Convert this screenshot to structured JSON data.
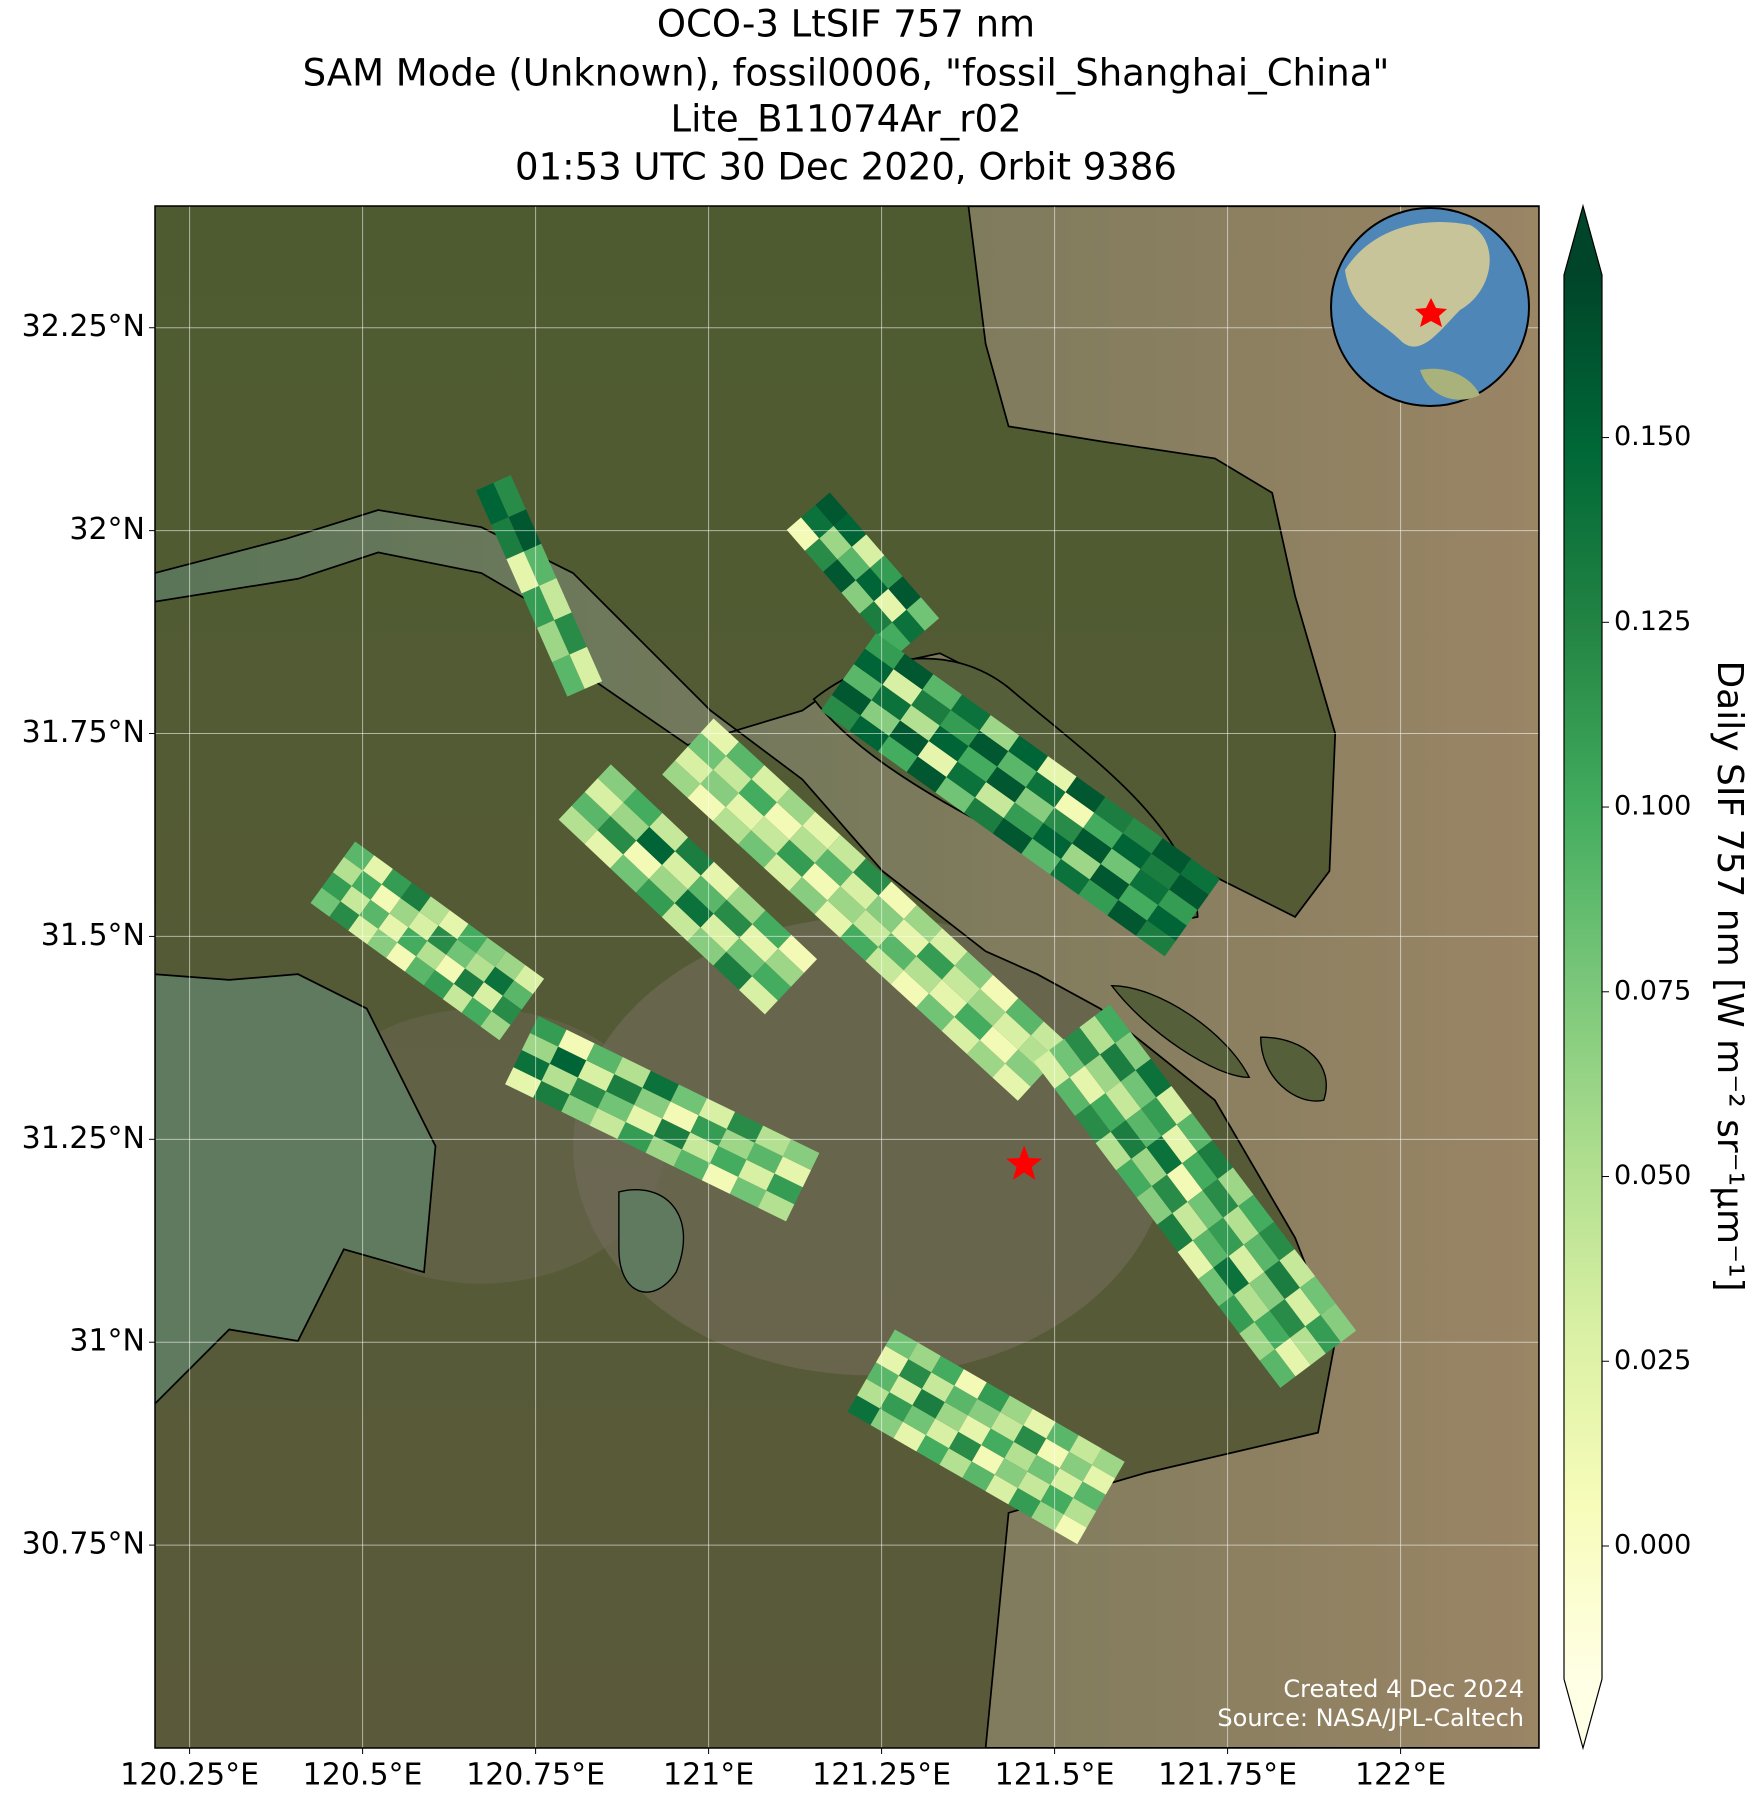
{
  "title": [
    "OCO-3 LtSIF 757 nm",
    "SAM Mode (Unknown), fossil0006, \"fossil_Shanghai_China\"",
    "Lite_B11074Ar_r02",
    "01:53 UTC 30 Dec 2020, Orbit 9386"
  ],
  "map": {
    "xlim": [
      120.2,
      122.2
    ],
    "ylim": [
      30.5,
      32.4
    ],
    "grid": true,
    "xticks": [
      {
        "value": 120.25,
        "label": "120.25°E"
      },
      {
        "value": 120.5,
        "label": "120.5°E"
      },
      {
        "value": 120.75,
        "label": "120.75°E"
      },
      {
        "value": 121,
        "label": "121°E"
      },
      {
        "value": 121.25,
        "label": "121.25°E"
      },
      {
        "value": 121.5,
        "label": "121.5°E"
      },
      {
        "value": 121.75,
        "label": "121.75°E"
      },
      {
        "value": 122,
        "label": "122°E"
      }
    ],
    "yticks": [
      {
        "value": 30.75,
        "label": "30.75°N"
      },
      {
        "value": 31,
        "label": "31°N"
      },
      {
        "value": 31.25,
        "label": "31.25°N"
      },
      {
        "value": 31.5,
        "label": "31.5°N"
      },
      {
        "value": 31.75,
        "label": "31.75°N"
      },
      {
        "value": 32,
        "label": "32°N"
      },
      {
        "value": 32.25,
        "label": "32.25°N"
      }
    ],
    "target": {
      "lon": 121.456,
      "lat": 31.219,
      "color": "#ff0000"
    },
    "swaths": [
      {
        "lon": [
          120.689,
          120.821
        ],
        "lat": [
          32.059,
          31.805
        ],
        "values": [
          [
            0.15,
            0.12
          ],
          [
            0.13,
            0.16
          ],
          [
            0.02,
            0.09
          ],
          [
            0.11,
            0.04
          ],
          [
            0.06,
            0.12
          ],
          [
            0.09,
            0.03
          ]
        ]
      },
      {
        "lon": [
          121.144,
          121.302
        ],
        "lat": [
          32.024,
          31.869
        ],
        "values": [
          [
            0.01,
            0.14,
            0.16
          ],
          [
            0.12,
            0.06,
            0.15
          ],
          [
            0.16,
            0.09,
            0.03
          ],
          [
            0.07,
            0.15,
            0.11
          ],
          [
            0.13,
            0.02,
            0.16
          ],
          [
            0.1,
            0.14,
            0.08
          ]
        ]
      },
      {
        "lon": [
          120.821,
          121.119
        ],
        "lat": [
          31.678,
          31.438
        ],
        "values": [
          [
            0.05,
            0.09,
            0.03,
            0.07
          ],
          [
            0.02,
            0.12,
            0.06,
            0.1
          ],
          [
            0.08,
            0.01,
            0.15,
            0.04
          ],
          [
            0.11,
            0.06,
            0.03,
            0.13
          ],
          [
            0.04,
            0.14,
            0.09,
            0.02
          ],
          [
            0.07,
            0.03,
            0.12,
            0.06
          ],
          [
            0.13,
            0.08,
            0.02,
            0.1
          ],
          [
            0.03,
            0.1,
            0.06,
            0.01
          ]
        ]
      },
      {
        "lon": [
          120.457,
          120.73
        ],
        "lat": [
          31.579,
          31.41
        ],
        "values": [
          [
            0.08,
            0.11,
            0.05,
            0.09
          ],
          [
            0.12,
            0.04,
            0.1,
            0.02
          ],
          [
            0.03,
            0.09,
            0.01,
            0.11
          ],
          [
            0.07,
            0.02,
            0.06,
            0.13
          ],
          [
            0.01,
            0.1,
            0.03,
            0.05
          ],
          [
            0.09,
            0.05,
            0.12,
            0.02
          ],
          [
            0.11,
            0.01,
            0.08,
            0.1
          ],
          [
            0.04,
            0.13,
            0.05,
            0.07
          ],
          [
            0.1,
            0.03,
            0.14,
            0.06
          ],
          [
            0.06,
            0.12,
            0.09,
            0.03
          ]
        ]
      },
      {
        "lon": [
          120.73,
          121.136
        ],
        "lat": [
          31.36,
          31.191
        ],
        "values": [
          [
            0.02,
            0.14,
            0.06,
            0.11
          ],
          [
            0.13,
            0.05,
            0.15,
            0.01
          ],
          [
            0.07,
            0.12,
            0.03,
            0.09
          ],
          [
            0.04,
            0.08,
            0.13,
            0.05
          ],
          [
            0.11,
            0.02,
            0.07,
            0.14
          ],
          [
            0.06,
            0.13,
            0.01,
            0.08
          ],
          [
            0.09,
            0.04,
            0.11,
            0.03
          ],
          [
            0.01,
            0.1,
            0.06,
            0.12
          ],
          [
            0.08,
            0.03,
            0.09,
            0.05
          ],
          [
            0.05,
            0.11,
            0.02,
            0.07
          ]
        ]
      },
      {
        "lon": [
          120.97,
          121.484
        ],
        "lat": [
          31.734,
          31.332
        ],
        "values": [
          [
            0.06,
            0.03,
            0.08,
            0.02
          ],
          [
            0.01,
            0.07,
            0.04,
            0.09
          ],
          [
            0.05,
            0.02,
            0.1,
            0.03
          ],
          [
            0.08,
            0.04,
            0.01,
            0.06
          ],
          [
            0.03,
            0.11,
            0.05,
            0.02
          ],
          [
            0.07,
            0.01,
            0.09,
            0.04
          ],
          [
            0.02,
            0.06,
            0.03,
            0.12
          ],
          [
            0.1,
            0.04,
            0.07,
            0.01
          ],
          [
            0.04,
            0.09,
            0.02,
            0.06
          ],
          [
            0.01,
            0.05,
            0.11,
            0.03
          ],
          [
            0.08,
            0.02,
            0.04,
            0.07
          ],
          [
            0.03,
            0.1,
            0.06,
            0.01
          ],
          [
            0.06,
            0.01,
            0.03,
            0.09
          ],
          [
            0.02,
            0.07,
            0.05,
            0.04
          ]
        ]
      },
      {
        "lon": [
          121.202,
          121.699
        ],
        "lat": [
          31.826,
          31.523
        ],
        "values": [
          [
            0.12,
            0.16,
            0.09,
            0.15,
            0.11
          ],
          [
            0.15,
            0.07,
            0.14,
            0.03,
            0.16
          ],
          [
            0.1,
            0.16,
            0.05,
            0.13,
            0.09
          ],
          [
            0.16,
            0.02,
            0.15,
            0.11,
            0.14
          ],
          [
            0.08,
            0.14,
            0.1,
            0.16,
            0.06
          ],
          [
            0.13,
            0.04,
            0.16,
            0.09,
            0.15
          ],
          [
            0.16,
            0.11,
            0.07,
            0.14,
            0.02
          ],
          [
            0.09,
            0.15,
            0.12,
            0.01,
            0.16
          ],
          [
            0.14,
            0.06,
            0.16,
            0.1,
            0.13
          ],
          [
            0.11,
            0.16,
            0.08,
            0.15,
            0.12
          ],
          [
            0.16,
            0.1,
            0.14,
            0.13,
            0.16
          ],
          [
            0.13,
            0.15,
            0.11,
            0.16,
            0.14
          ]
        ]
      },
      {
        "lon": [
          121.525,
          121.881
        ],
        "lat": [
          31.381,
          30.979
        ],
        "values": [
          [
            0.03,
            0.08,
            0.12,
            0.05,
            0.1
          ],
          [
            0.09,
            0.02,
            0.06,
            0.13,
            0.07
          ],
          [
            0.12,
            0.1,
            0.04,
            0.08,
            0.14
          ],
          [
            0.05,
            0.13,
            0.09,
            0.11,
            0.03
          ],
          [
            0.1,
            0.06,
            0.14,
            0.02,
            0.09
          ],
          [
            0.07,
            0.12,
            0.01,
            0.1,
            0.13
          ],
          [
            0.13,
            0.04,
            0.08,
            0.12,
            0.06
          ],
          [
            0.02,
            0.09,
            0.11,
            0.05,
            0.1
          ],
          [
            0.08,
            0.14,
            0.03,
            0.09,
            0.12
          ],
          [
            0.11,
            0.05,
            0.07,
            0.13,
            0.04
          ],
          [
            0.06,
            0.1,
            0.12,
            0.03,
            0.08
          ],
          [
            0.09,
            0.02,
            0.05,
            0.11,
            0.07
          ]
        ]
      },
      {
        "lon": [
          121.235,
          121.567
        ],
        "lat": [
          30.965,
          30.802
        ],
        "values": [
          [
            0.14,
            0.05,
            0.09,
            0.02,
            0.08
          ],
          [
            0.07,
            0.11,
            0.03,
            0.12,
            0.06
          ],
          [
            0.02,
            0.08,
            0.13,
            0.04,
            0.1
          ],
          [
            0.1,
            0.03,
            0.06,
            0.09,
            0.01
          ],
          [
            0.05,
            0.12,
            0.02,
            0.07,
            0.11
          ],
          [
            0.09,
            0.01,
            0.1,
            0.04,
            0.06
          ],
          [
            0.03,
            0.07,
            0.05,
            0.12,
            0.02
          ],
          [
            0.11,
            0.04,
            0.08,
            0.01,
            0.09
          ],
          [
            0.06,
            0.1,
            0.03,
            0.07,
            0.04
          ],
          [
            0.01,
            0.05,
            0.09,
            0.02,
            0.06
          ]
        ]
      }
    ]
  },
  "colorbar": {
    "label": "Daily SIF 757 nm [W m⁻² sr⁻¹μm⁻¹]",
    "clim": [
      -0.018,
      0.172
    ],
    "ticks": [
      {
        "value": 0,
        "label": "0.000"
      },
      {
        "value": 0.025,
        "label": "0.025"
      },
      {
        "value": 0.05,
        "label": "0.050"
      },
      {
        "value": 0.075,
        "label": "0.075"
      },
      {
        "value": 0.1,
        "label": "0.100"
      },
      {
        "value": 0.125,
        "label": "0.125"
      },
      {
        "value": 0.15,
        "label": "0.150"
      }
    ],
    "colormap": [
      "#ffffe5",
      "#f7fcb9",
      "#d9f0a3",
      "#addd8e",
      "#78c679",
      "#41ab5d",
      "#238443",
      "#006837",
      "#004529"
    ]
  },
  "credits": [
    "Created 4 Dec 2024",
    "Source: NASA/JPL-Caltech"
  ]
}
